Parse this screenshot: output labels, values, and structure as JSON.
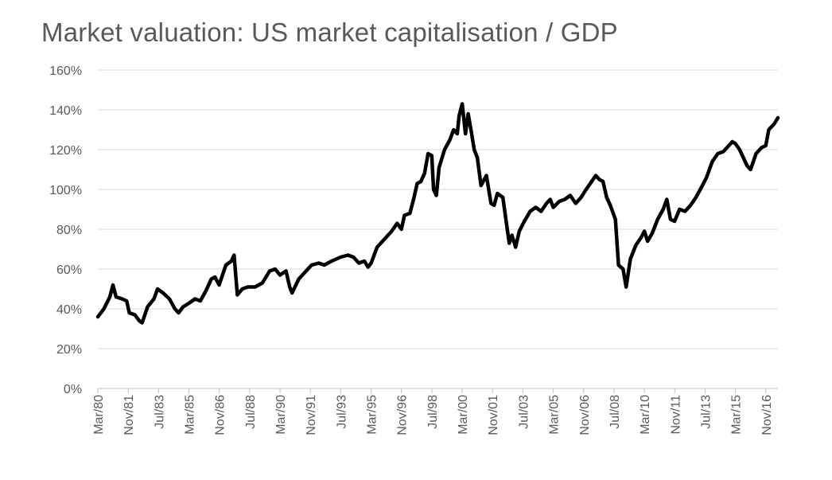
{
  "chart_data": {
    "type": "line",
    "title": "Market valuation: US market capitalisation / GDP",
    "xlabel": "",
    "ylabel": "",
    "ylim": [
      0,
      160
    ],
    "yticks": [
      "0%",
      "20%",
      "40%",
      "60%",
      "80%",
      "100%",
      "120%",
      "140%",
      "160%"
    ],
    "grid": true,
    "x_tick_labels": [
      "Mar/80",
      "Nov/81",
      "Jul/83",
      "Mar/85",
      "Nov/86",
      "Jul/88",
      "Mar/90",
      "Nov/91",
      "Jul/93",
      "Mar/95",
      "Nov/96",
      "Jul/98",
      "Mar/00",
      "Nov/01",
      "Jul/03",
      "Mar/05",
      "Nov/06",
      "Jul/08",
      "Mar/10",
      "Nov/11",
      "Jul/13",
      "Mar/15",
      "Nov/16"
    ],
    "x_start_year": 1980.17,
    "x_end_year": 2017.5,
    "series": [
      {
        "name": "US market capitalisation / GDP",
        "color": "#000000",
        "points": [
          [
            1980.17,
            36
          ],
          [
            1980.5,
            40
          ],
          [
            1980.83,
            46
          ],
          [
            1981.0,
            52
          ],
          [
            1981.17,
            46
          ],
          [
            1981.5,
            45
          ],
          [
            1981.75,
            44
          ],
          [
            1981.9,
            38
          ],
          [
            1982.2,
            37
          ],
          [
            1982.45,
            34
          ],
          [
            1982.6,
            33
          ],
          [
            1982.9,
            41
          ],
          [
            1983.25,
            45
          ],
          [
            1983.45,
            50
          ],
          [
            1983.75,
            48
          ],
          [
            1984.1,
            45
          ],
          [
            1984.4,
            40
          ],
          [
            1984.6,
            38
          ],
          [
            1984.85,
            41
          ],
          [
            1985.2,
            43
          ],
          [
            1985.5,
            45
          ],
          [
            1985.8,
            44
          ],
          [
            1986.1,
            49
          ],
          [
            1986.4,
            55
          ],
          [
            1986.6,
            56
          ],
          [
            1986.83,
            52
          ],
          [
            1987.2,
            62
          ],
          [
            1987.5,
            64
          ],
          [
            1987.65,
            67
          ],
          [
            1987.83,
            47
          ],
          [
            1988.1,
            50
          ],
          [
            1988.4,
            51
          ],
          [
            1988.8,
            51
          ],
          [
            1989.2,
            53
          ],
          [
            1989.6,
            59
          ],
          [
            1989.9,
            60
          ],
          [
            1990.17,
            57
          ],
          [
            1990.5,
            59
          ],
          [
            1990.7,
            51
          ],
          [
            1990.83,
            48
          ],
          [
            1991.2,
            55
          ],
          [
            1991.5,
            58
          ],
          [
            1991.9,
            62
          ],
          [
            1992.3,
            63
          ],
          [
            1992.6,
            62
          ],
          [
            1993.0,
            64
          ],
          [
            1993.5,
            66
          ],
          [
            1993.9,
            67
          ],
          [
            1994.2,
            66
          ],
          [
            1994.5,
            63
          ],
          [
            1994.8,
            64
          ],
          [
            1995.0,
            61
          ],
          [
            1995.17,
            63
          ],
          [
            1995.5,
            71
          ],
          [
            1995.9,
            75
          ],
          [
            1996.3,
            79
          ],
          [
            1996.6,
            83
          ],
          [
            1996.83,
            80
          ],
          [
            1997.0,
            87
          ],
          [
            1997.3,
            88
          ],
          [
            1997.5,
            95
          ],
          [
            1997.7,
            103
          ],
          [
            1997.9,
            104
          ],
          [
            1998.1,
            108
          ],
          [
            1998.3,
            118
          ],
          [
            1998.5,
            117
          ],
          [
            1998.6,
            100
          ],
          [
            1998.75,
            97
          ],
          [
            1998.9,
            111
          ],
          [
            1999.2,
            120
          ],
          [
            1999.5,
            125
          ],
          [
            1999.7,
            130
          ],
          [
            1999.9,
            128
          ],
          [
            2000.0,
            137
          ],
          [
            2000.17,
            143
          ],
          [
            2000.35,
            128
          ],
          [
            2000.5,
            138
          ],
          [
            2000.65,
            130
          ],
          [
            2000.83,
            120
          ],
          [
            2001.0,
            116
          ],
          [
            2001.2,
            102
          ],
          [
            2001.5,
            107
          ],
          [
            2001.75,
            93
          ],
          [
            2001.92,
            92
          ],
          [
            2002.1,
            98
          ],
          [
            2002.4,
            96
          ],
          [
            2002.6,
            83
          ],
          [
            2002.75,
            73
          ],
          [
            2002.9,
            77
          ],
          [
            2003.1,
            71
          ],
          [
            2003.3,
            79
          ],
          [
            2003.58,
            84
          ],
          [
            2003.9,
            89
          ],
          [
            2004.2,
            91
          ],
          [
            2004.5,
            89
          ],
          [
            2004.8,
            93
          ],
          [
            2005.0,
            95
          ],
          [
            2005.17,
            91
          ],
          [
            2005.5,
            94
          ],
          [
            2005.8,
            95
          ],
          [
            2006.1,
            97
          ],
          [
            2006.4,
            93
          ],
          [
            2006.7,
            96
          ],
          [
            2006.9,
            99
          ],
          [
            2007.2,
            103
          ],
          [
            2007.5,
            107
          ],
          [
            2007.7,
            105
          ],
          [
            2007.9,
            104
          ],
          [
            2008.1,
            96
          ],
          [
            2008.3,
            92
          ],
          [
            2008.58,
            85
          ],
          [
            2008.75,
            62
          ],
          [
            2009.0,
            60
          ],
          [
            2009.17,
            51
          ],
          [
            2009.4,
            65
          ],
          [
            2009.7,
            72
          ],
          [
            2010.0,
            76
          ],
          [
            2010.17,
            79
          ],
          [
            2010.35,
            74
          ],
          [
            2010.6,
            78
          ],
          [
            2010.9,
            85
          ],
          [
            2011.2,
            90
          ],
          [
            2011.4,
            95
          ],
          [
            2011.6,
            85
          ],
          [
            2011.83,
            84
          ],
          [
            2012.1,
            90
          ],
          [
            2012.4,
            89
          ],
          [
            2012.7,
            92
          ],
          [
            2013.0,
            96
          ],
          [
            2013.3,
            101
          ],
          [
            2013.58,
            106
          ],
          [
            2013.9,
            114
          ],
          [
            2014.2,
            118
          ],
          [
            2014.5,
            119
          ],
          [
            2014.8,
            122
          ],
          [
            2015.0,
            124
          ],
          [
            2015.17,
            123
          ],
          [
            2015.4,
            120
          ],
          [
            2015.6,
            116
          ],
          [
            2015.8,
            112
          ],
          [
            2016.0,
            110
          ],
          [
            2016.3,
            118
          ],
          [
            2016.6,
            121
          ],
          [
            2016.83,
            122
          ],
          [
            2017.0,
            130
          ],
          [
            2017.3,
            133
          ],
          [
            2017.5,
            136
          ]
        ]
      }
    ]
  }
}
